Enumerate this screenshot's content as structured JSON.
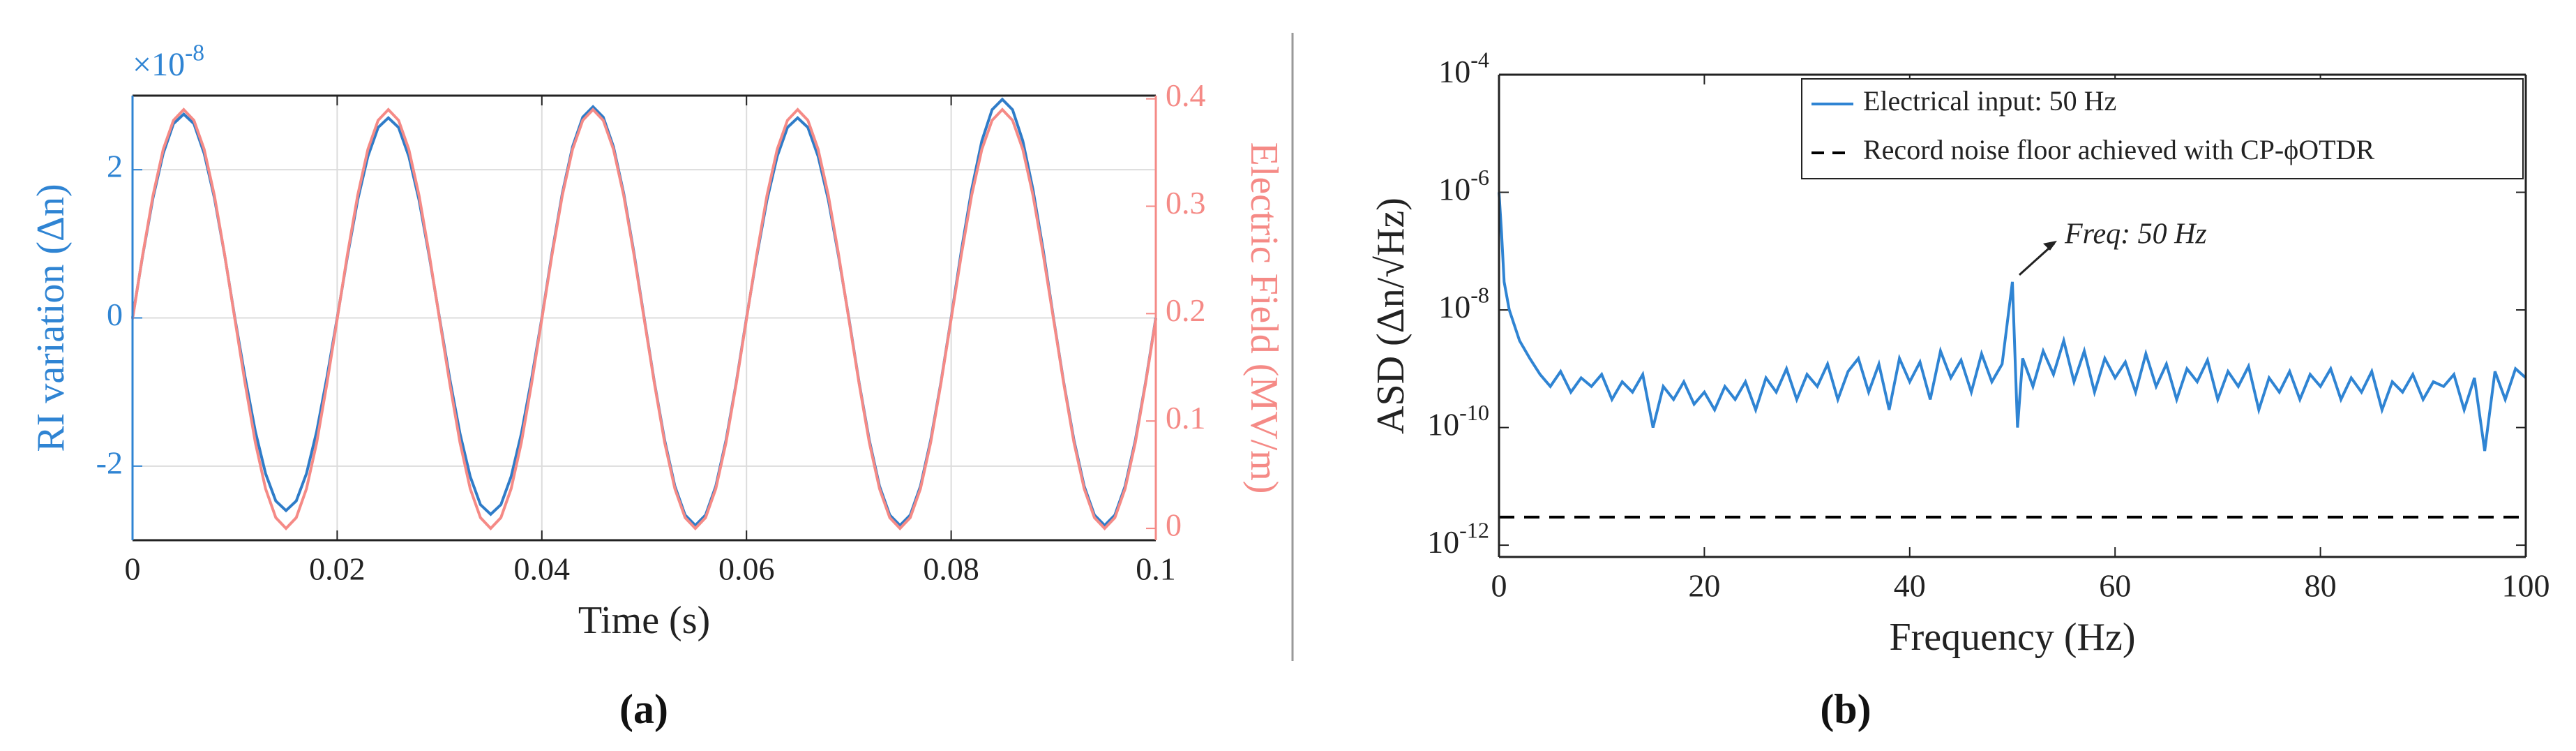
{
  "chart_data": [
    {
      "type": "line",
      "panel_label": "(a)",
      "xlabel": "Time (s)",
      "ylabel": "RI variation (Δn)",
      "y2label": "Electric Field (MV/m)",
      "y_multiplier": "×10^-8",
      "y_color": "#2f84d3",
      "y2_color": "#f58a86",
      "grid": true,
      "xlim": [
        0,
        0.1
      ],
      "xticks": [
        0,
        0.02,
        0.04,
        0.06,
        0.08,
        0.1
      ],
      "ylim": [
        -3,
        3
      ],
      "yticks": [
        -2,
        0,
        2
      ],
      "y2lim": [
        -0.011,
        0.403
      ],
      "y2ticks": [
        0,
        0.1,
        0.2,
        0.3,
        0.4
      ],
      "x": [
        0,
        0.001,
        0.002,
        0.003,
        0.004,
        0.005,
        0.006,
        0.007,
        0.008,
        0.009,
        0.01,
        0.011,
        0.012,
        0.013,
        0.014,
        0.015,
        0.016,
        0.017,
        0.018,
        0.019,
        0.02,
        0.021,
        0.022,
        0.023,
        0.024,
        0.025,
        0.026,
        0.027,
        0.028,
        0.029,
        0.03,
        0.031,
        0.032,
        0.033,
        0.034,
        0.035,
        0.036,
        0.037,
        0.038,
        0.039,
        0.04,
        0.041,
        0.042,
        0.043,
        0.044,
        0.045,
        0.046,
        0.047,
        0.048,
        0.049,
        0.05,
        0.051,
        0.052,
        0.053,
        0.054,
        0.055,
        0.056,
        0.057,
        0.058,
        0.059,
        0.06,
        0.061,
        0.062,
        0.063,
        0.064,
        0.065,
        0.066,
        0.067,
        0.068,
        0.069,
        0.07,
        0.071,
        0.072,
        0.073,
        0.074,
        0.075,
        0.076,
        0.077,
        0.078,
        0.079,
        0.08,
        0.081,
        0.082,
        0.083,
        0.084,
        0.085,
        0.086,
        0.087,
        0.088,
        0.089,
        0.09,
        0.091,
        0.092,
        0.093,
        0.094,
        0.095,
        0.096,
        0.097,
        0.098,
        0.099,
        0.1
      ],
      "series": [
        {
          "color": "#2f7cc8",
          "values": [
            0,
            0.85,
            1.62,
            2.22,
            2.62,
            2.75,
            2.62,
            2.22,
            1.62,
            0.85,
            0,
            -0.8,
            -1.53,
            -2.1,
            -2.47,
            -2.6,
            -2.47,
            -2.1,
            -1.53,
            -0.8,
            0,
            0.83,
            1.59,
            2.18,
            2.57,
            2.7,
            2.57,
            2.18,
            1.59,
            0.83,
            0,
            -0.82,
            -1.56,
            -2.14,
            -2.52,
            -2.65,
            -2.52,
            -2.14,
            -1.56,
            -0.82,
            0,
            0.88,
            1.68,
            2.31,
            2.71,
            2.85,
            2.71,
            2.31,
            1.68,
            0.88,
            0,
            -0.87,
            -1.65,
            -2.27,
            -2.66,
            -2.8,
            -2.66,
            -2.27,
            -1.65,
            -0.87,
            0,
            0.83,
            1.59,
            2.18,
            2.57,
            2.7,
            2.57,
            2.18,
            1.59,
            0.83,
            0,
            -0.87,
            -1.65,
            -2.27,
            -2.66,
            -2.8,
            -2.66,
            -2.27,
            -1.65,
            -0.87,
            0,
            0.91,
            1.73,
            2.39,
            2.81,
            2.95,
            2.81,
            2.39,
            1.73,
            0.91,
            0,
            -0.87,
            -1.65,
            -2.27,
            -2.66,
            -2.8,
            -2.66,
            -2.27,
            -1.65,
            -0.87,
            0
          ]
        },
        {
          "color": "#f58a86",
          "axis": "y2",
          "values": [
            0.195,
            0.255,
            0.31,
            0.353,
            0.38,
            0.39,
            0.38,
            0.353,
            0.31,
            0.255,
            0.195,
            0.135,
            0.08,
            0.037,
            0.01,
            0,
            0.01,
            0.037,
            0.08,
            0.135,
            0.195,
            0.255,
            0.31,
            0.353,
            0.38,
            0.39,
            0.38,
            0.353,
            0.31,
            0.255,
            0.195,
            0.135,
            0.08,
            0.037,
            0.01,
            0,
            0.01,
            0.037,
            0.08,
            0.135,
            0.195,
            0.255,
            0.31,
            0.353,
            0.38,
            0.39,
            0.38,
            0.353,
            0.31,
            0.255,
            0.195,
            0.135,
            0.08,
            0.037,
            0.01,
            0,
            0.01,
            0.037,
            0.08,
            0.135,
            0.195,
            0.255,
            0.31,
            0.353,
            0.38,
            0.39,
            0.38,
            0.353,
            0.31,
            0.255,
            0.195,
            0.135,
            0.08,
            0.037,
            0.01,
            0,
            0.01,
            0.037,
            0.08,
            0.135,
            0.195,
            0.255,
            0.31,
            0.353,
            0.38,
            0.39,
            0.38,
            0.353,
            0.31,
            0.255,
            0.195,
            0.135,
            0.08,
            0.037,
            0.01,
            0,
            0.01,
            0.037,
            0.08,
            0.135,
            0.195
          ]
        }
      ]
    },
    {
      "type": "line",
      "panel_label": "(b)",
      "xlabel": "Frequency (Hz)",
      "ylabel": "ASD (Δn/√Hz)",
      "y_scale": "log",
      "legend": "upper right",
      "annotation": "Freq: 50 Hz",
      "xlim": [
        0,
        100
      ],
      "xticks": [
        0,
        20,
        40,
        60,
        80,
        100
      ],
      "ylim": [
        6.3e-13,
        0.0001
      ],
      "yticks": [
        {
          "value": 1e-12,
          "label": "10^-12"
        },
        {
          "value": 1e-10,
          "label": "10^-10"
        },
        {
          "value": 1e-08,
          "label": "10^-8"
        },
        {
          "value": 1e-06,
          "label": "10^-6"
        },
        {
          "value": 0.0001,
          "label": "10^-4"
        }
      ],
      "x": [
        0,
        0.25,
        0.5,
        1,
        2,
        3,
        4,
        5,
        6,
        7,
        8,
        9,
        10,
        11,
        12,
        13,
        14,
        15,
        16,
        17,
        18,
        19,
        20,
        21,
        22,
        23,
        24,
        25,
        26,
        27,
        28,
        29,
        30,
        31,
        32,
        33,
        34,
        35,
        36,
        37,
        38,
        39,
        40,
        41,
        42,
        43,
        44,
        45,
        46,
        47,
        48,
        49,
        50,
        50.5,
        51,
        52,
        53,
        54,
        55,
        56,
        57,
        58,
        59,
        60,
        61,
        62,
        63,
        64,
        65,
        66,
        67,
        68,
        69,
        70,
        71,
        72,
        73,
        74,
        75,
        76,
        77,
        78,
        79,
        80,
        81,
        82,
        83,
        84,
        85,
        86,
        87,
        88,
        89,
        90,
        91,
        92,
        93,
        94,
        95,
        96,
        97,
        98,
        99,
        100
      ],
      "series": [
        {
          "name": "Electrical input: 50 Hz",
          "color": "#2f84d3",
          "line_style": "solid",
          "values": [
            1e-06,
            2e-07,
            3e-08,
            1e-08,
            3e-09,
            1.5e-09,
            8e-10,
            5e-10,
            9e-10,
            4e-10,
            7e-10,
            5e-10,
            8e-10,
            3e-10,
            6e-10,
            4e-10,
            8e-10,
            1e-10,
            5e-10,
            3e-10,
            6e-10,
            2.5e-10,
            4e-10,
            2e-10,
            5e-10,
            3e-10,
            6e-10,
            2e-10,
            7e-10,
            4e-10,
            1e-09,
            3e-10,
            8e-10,
            5e-10,
            1.2e-09,
            3e-10,
            9e-10,
            1.5e-09,
            4e-10,
            1.2e-09,
            2e-10,
            1.5e-09,
            6e-10,
            1.3e-09,
            3e-10,
            2e-09,
            7e-10,
            1.4e-09,
            4e-10,
            1.8e-09,
            6e-10,
            1.2e-09,
            3e-08,
            1e-10,
            1.5e-09,
            5e-10,
            2e-09,
            8e-10,
            3e-09,
            6e-10,
            2e-09,
            4e-10,
            1.5e-09,
            7e-10,
            1.3e-09,
            4e-10,
            1.8e-09,
            5e-10,
            1.2e-09,
            3e-10,
            1e-09,
            6e-10,
            1.4e-09,
            3e-10,
            9e-10,
            5e-10,
            1.1e-09,
            2e-10,
            7e-10,
            4e-10,
            9e-10,
            3e-10,
            8e-10,
            5e-10,
            1e-09,
            3e-10,
            7e-10,
            4e-10,
            9e-10,
            2e-10,
            6e-10,
            4e-10,
            8e-10,
            3e-10,
            6e-10,
            5e-10,
            8e-10,
            2e-10,
            7e-10,
            4e-11,
            9e-10,
            3e-10,
            1e-09,
            7e-10
          ]
        },
        {
          "name": "Record noise floor achieved with CP-ϕOTDR",
          "color": "#000000",
          "line_style": "dashed",
          "x": [
            0,
            100
          ],
          "values": [
            3e-12,
            3e-12
          ]
        }
      ]
    }
  ]
}
